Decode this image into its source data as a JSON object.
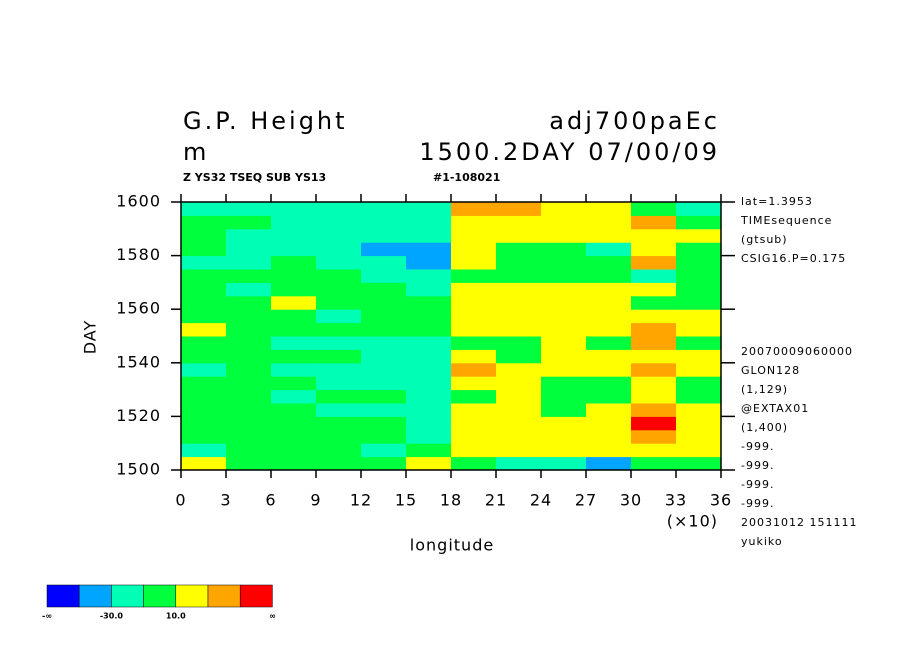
{
  "chart_data": {
    "type": "heatmap",
    "title": "G.P. Height",
    "title_right": "adj700paEc",
    "unit": "m",
    "subtitle_right": "1500.2DAY 07/00/09",
    "info_left": "Z YS32 TSEQ SUB YS13",
    "info_right": "#1-108021",
    "x_label": "longitude",
    "x_scale_note": "(×10)",
    "y_label": "DAY",
    "xlim": [
      0,
      36
    ],
    "xticks": [
      0,
      3,
      6,
      9,
      12,
      15,
      18,
      21,
      24,
      27,
      30,
      33,
      36
    ],
    "ylim": [
      1500,
      1600
    ],
    "yticks": [
      1500,
      1520,
      1540,
      1560,
      1580,
      1600
    ],
    "notes_top": [
      "lat=1.3953",
      "TIMEsequence",
      "(gtsub)",
      "CSIG16.P=0.175"
    ],
    "notes_bottom": [
      "20070009060000",
      "GLON128",
      "(1,129)",
      "@EXTAX01",
      "(1,400)",
      "-999.",
      "-999.",
      "-999.",
      "-999.",
      "20031012 151111",
      "yukiko"
    ],
    "colorbar": {
      "colors": [
        "#0000ff",
        "#00a5ff",
        "#00ffb4",
        "#00ff3c",
        "#ffff00",
        "#ffa500",
        "#ff0000"
      ],
      "labels": [
        "-∞",
        null,
        {
          "value": -30,
          "label": "-30.0"
        },
        null,
        {
          "value": 10,
          "label": "10.0"
        },
        null,
        null,
        "∞"
      ]
    },
    "x": [
      1.5,
      4.5,
      7.5,
      10.5,
      13.5,
      16.5,
      19.5,
      22.5,
      25.5,
      28.5,
      31.5,
      34.5
    ],
    "y": [
      1502.5,
      1507.5,
      1512.5,
      1517.5,
      1522.5,
      1527.5,
      1532.5,
      1537.5,
      1542.5,
      1547.5,
      1552.5,
      1557.5,
      1562.5,
      1567.5,
      1572.5,
      1577.5,
      1582.5,
      1587.5,
      1592.5,
      1597.5
    ],
    "z": [
      [
        15,
        5,
        0,
        -5,
        5,
        15,
        5,
        -15,
        -20,
        -45,
        -10,
        5
      ],
      [
        -15,
        -10,
        -5,
        -10,
        -15,
        5,
        20,
        15,
        20,
        15,
        25,
        10
      ],
      [
        -5,
        0,
        5,
        0,
        -5,
        -15,
        15,
        20,
        15,
        20,
        35,
        15
      ],
      [
        0,
        -5,
        -10,
        0,
        5,
        -25,
        25,
        15,
        20,
        10,
        55,
        20
      ],
      [
        -5,
        5,
        0,
        -15,
        -20,
        -20,
        15,
        20,
        5,
        15,
        30,
        15
      ],
      [
        5,
        -5,
        -15,
        -5,
        -10,
        -25,
        0,
        15,
        0,
        5,
        20,
        5
      ],
      [
        0,
        5,
        -5,
        -20,
        -25,
        -30,
        20,
        10,
        5,
        -5,
        15,
        0
      ],
      [
        -15,
        -5,
        -20,
        -25,
        -25,
        -20,
        35,
        15,
        20,
        10,
        40,
        10
      ],
      [
        5,
        0,
        -10,
        -5,
        -15,
        -15,
        15,
        5,
        15,
        20,
        25,
        15
      ],
      [
        0,
        -10,
        -20,
        -25,
        -20,
        -15,
        5,
        -5,
        10,
        0,
        35,
        5
      ],
      [
        10,
        5,
        0,
        -10,
        -5,
        5,
        25,
        15,
        25,
        20,
        40,
        10
      ],
      [
        -5,
        0,
        -10,
        -15,
        -5,
        -10,
        20,
        15,
        25,
        20,
        20,
        15
      ],
      [
        0,
        5,
        10,
        5,
        0,
        -5,
        15,
        20,
        10,
        15,
        5,
        0
      ],
      [
        -10,
        -15,
        5,
        0,
        -10,
        -15,
        20,
        25,
        15,
        10,
        15,
        5
      ],
      [
        5,
        0,
        -10,
        -5,
        -15,
        -20,
        5,
        0,
        -5,
        -10,
        -15,
        0
      ],
      [
        -15,
        -20,
        -10,
        -25,
        -30,
        -35,
        15,
        -5,
        0,
        -10,
        45,
        -5
      ],
      [
        0,
        -20,
        -15,
        -25,
        -35,
        -45,
        10,
        5,
        -5,
        -15,
        25,
        5
      ],
      [
        -10,
        -15,
        -20,
        -25,
        -30,
        -30,
        15,
        10,
        15,
        10,
        20,
        15
      ],
      [
        -5,
        -10,
        -15,
        -15,
        -20,
        -20,
        15,
        20,
        25,
        10,
        35,
        5
      ],
      [
        -20,
        -25,
        -20,
        -25,
        -30,
        -25,
        30,
        40,
        25,
        20,
        5,
        -15
      ]
    ]
  }
}
